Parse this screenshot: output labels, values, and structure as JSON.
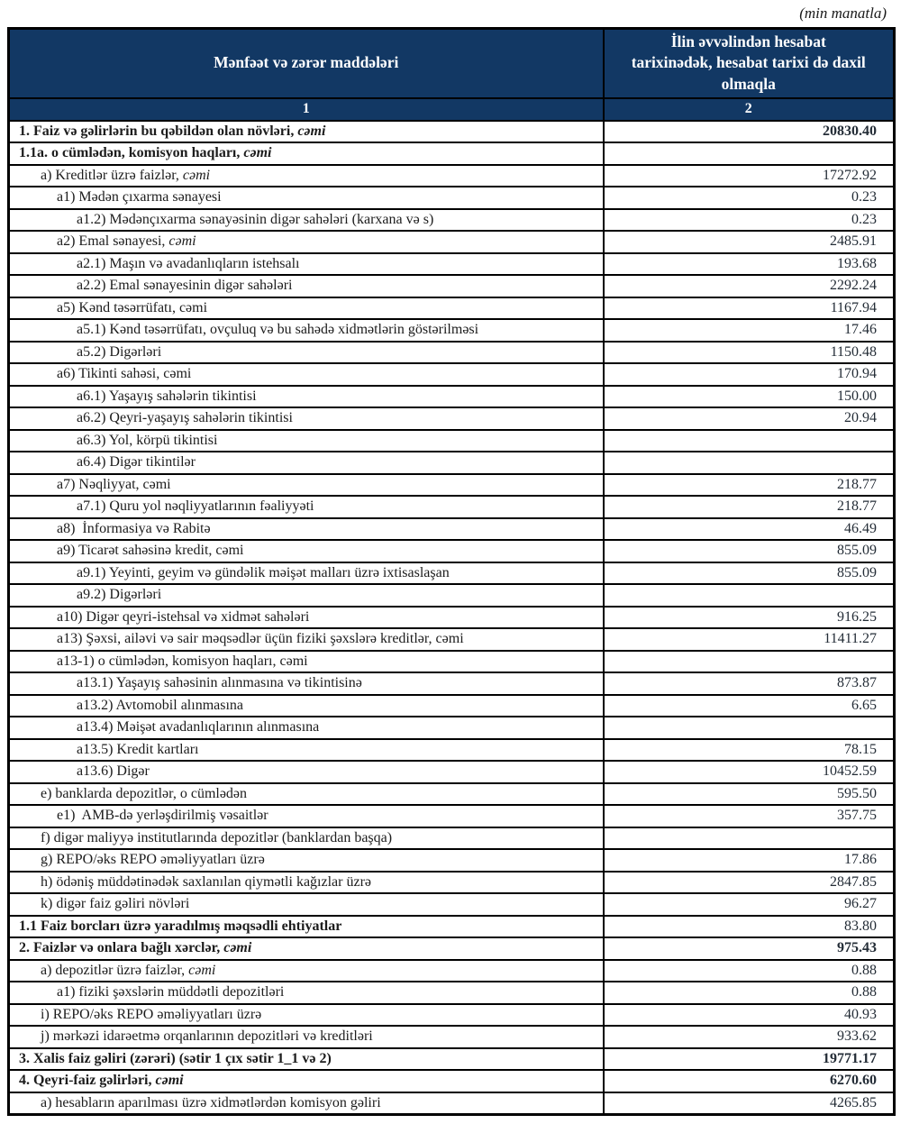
{
  "unit_note": "(min manatla)",
  "colors": {
    "header_bg": "#123864",
    "header_text": "#ffffff",
    "border": "#000000",
    "body_text": "#1c1c1c"
  },
  "table": {
    "col1_header": "Mənfəət və zərər maddələri",
    "col2_header": "İlin əvvəlindən hesabat tarixinədək, hesabat tarixi də daxil olmaqla",
    "col1_number": "1",
    "col2_number": "2",
    "rows": [
      {
        "label": "1. Faiz və gəlirlərin bu qəbildən olan növləri, ",
        "em": "cəmi",
        "value": "20830.40",
        "level": 0,
        "bold": true,
        "value_bold": true
      },
      {
        "label": "1.1a. o cümlədən, komisyon haqları, ",
        "em": "cəmi",
        "value": "",
        "level": 0,
        "bold": true,
        "value_bold": false
      },
      {
        "label": "a) Kreditlər üzrə faizlər, ",
        "em": "cəmi",
        "value": "17272.92",
        "level": 1,
        "bold": false,
        "value_bold": false
      },
      {
        "label": "a1) Mədən çıxarma sənayesi",
        "em": "",
        "value": "0.23",
        "level": 2,
        "bold": false,
        "value_bold": false
      },
      {
        "label": "a1.2) Mədənçıxarma sənayəsinin digər sahələri (karxana və s)",
        "em": "",
        "value": "0.23",
        "level": 3,
        "bold": false,
        "value_bold": false
      },
      {
        "label": "a2) Emal sənayesi, ",
        "em": "cəmi",
        "value": "2485.91",
        "level": 2,
        "bold": false,
        "value_bold": false
      },
      {
        "label": "a2.1) Maşın və avadanlıqların istehsalı",
        "em": "",
        "value": "193.68",
        "level": 3,
        "bold": false,
        "value_bold": false
      },
      {
        "label": "a2.2) Emal sənayesinin digər sahələri",
        "em": "",
        "value": "2292.24",
        "level": 3,
        "bold": false,
        "value_bold": false
      },
      {
        "label": "a5) Kənd təsərrüfatı, cəmi",
        "em": "",
        "value": "1167.94",
        "level": 2,
        "bold": false,
        "value_bold": false
      },
      {
        "label": "a5.1) Kənd təsərrüfatı, ovçuluq və bu sahədə xidmətlərin göstərilməsi",
        "em": "",
        "value": "17.46",
        "level": 3,
        "bold": false,
        "value_bold": false
      },
      {
        "label": "a5.2) Digərləri",
        "em": "",
        "value": "1150.48",
        "level": 3,
        "bold": false,
        "value_bold": false
      },
      {
        "label": "a6) Tikinti sahəsi, cəmi",
        "em": "",
        "value": "170.94",
        "level": 2,
        "bold": false,
        "value_bold": false
      },
      {
        "label": "a6.1) Yaşayış sahələrin tikintisi",
        "em": "",
        "value": "150.00",
        "level": 3,
        "bold": false,
        "value_bold": false
      },
      {
        "label": "a6.2) Qeyri-yaşayış sahələrin tikintisi",
        "em": "",
        "value": "20.94",
        "level": 3,
        "bold": false,
        "value_bold": false
      },
      {
        "label": "a6.3) Yol, körpü tikintisi",
        "em": "",
        "value": "",
        "level": 3,
        "bold": false,
        "value_bold": false
      },
      {
        "label": "a6.4) Digər tikintilər",
        "em": "",
        "value": "",
        "level": 3,
        "bold": false,
        "value_bold": false
      },
      {
        "label": "a7) Nəqliyyat, cəmi",
        "em": "",
        "value": "218.77",
        "level": 2,
        "bold": false,
        "value_bold": false
      },
      {
        "label": "a7.1) Quru yol nəqliyyatlarının fəaliyyəti",
        "em": "",
        "value": "218.77",
        "level": 3,
        "bold": false,
        "value_bold": false
      },
      {
        "label": "a8)  İnformasiya və Rabitə",
        "em": "",
        "value": "46.49",
        "level": 2,
        "bold": false,
        "value_bold": false
      },
      {
        "label": "a9) Ticarət sahəsinə kredit, cəmi",
        "em": "",
        "value": "855.09",
        "level": 2,
        "bold": false,
        "value_bold": false
      },
      {
        "label": "a9.1) Yeyinti, geyim və gündəlik məişət malları üzrə ixtisaslaşan",
        "em": "",
        "value": "855.09",
        "level": 3,
        "bold": false,
        "value_bold": false
      },
      {
        "label": "a9.2) Digərləri",
        "em": "",
        "value": "",
        "level": 3,
        "bold": false,
        "value_bold": false
      },
      {
        "label": "a10) Digər qeyri-istehsal və xidmət sahələri",
        "em": "",
        "value": "916.25",
        "level": 2,
        "bold": false,
        "value_bold": false
      },
      {
        "label": "a13) Şəxsi, ailəvi və sair məqsədlər üçün fiziki şəxslərə kreditlər, cəmi",
        "em": "",
        "value": "11411.27",
        "level": 2,
        "bold": false,
        "value_bold": false
      },
      {
        "label": "a13-1) o cümlədən, komisyon haqları, cəmi",
        "em": "",
        "value": "",
        "level": 2,
        "bold": false,
        "value_bold": false
      },
      {
        "label": "a13.1) Yaşayış sahəsinin alınmasına və tikintisinə",
        "em": "",
        "value": "873.87",
        "level": 3,
        "bold": false,
        "value_bold": false
      },
      {
        "label": "a13.2) Avtomobil alınmasına",
        "em": "",
        "value": "6.65",
        "level": 3,
        "bold": false,
        "value_bold": false
      },
      {
        "label": "a13.4) Məişət avadanlıqlarının alınmasına",
        "em": "",
        "value": "",
        "level": 3,
        "bold": false,
        "value_bold": false
      },
      {
        "label": "a13.5) Kredit kartları",
        "em": "",
        "value": "78.15",
        "level": 3,
        "bold": false,
        "value_bold": false
      },
      {
        "label": "a13.6) Digər",
        "em": "",
        "value": "10452.59",
        "level": 3,
        "bold": false,
        "value_bold": false
      },
      {
        "label": "e) banklarda depozitlər, o cümlədən",
        "em": "",
        "value": "595.50",
        "level": 1,
        "bold": false,
        "value_bold": false
      },
      {
        "label": "e1)  AMB-də yerləşdirilmiş vəsaitlər",
        "em": "",
        "value": "357.75",
        "level": 2,
        "bold": false,
        "value_bold": false
      },
      {
        "label": "f) digər maliyyə institutlarında depozitlər (banklardan başqa)",
        "em": "",
        "value": "",
        "level": 1,
        "bold": false,
        "value_bold": false
      },
      {
        "label": "g) REPO/əks REPO əməliyyatları üzrə",
        "em": "",
        "value": "17.86",
        "level": 1,
        "bold": false,
        "value_bold": false
      },
      {
        "label": "h) ödəniş müddətinədək saxlanılan qiymətli kağızlar üzrə",
        "em": "",
        "value": "2847.85",
        "level": 1,
        "bold": false,
        "value_bold": false
      },
      {
        "label": "k) digər faiz gəliri növləri",
        "em": "",
        "value": "96.27",
        "level": 1,
        "bold": false,
        "value_bold": false
      },
      {
        "label": "1.1 Faiz borcları üzrə yaradılmış məqsədli ehtiyatlar",
        "em": "",
        "value": "83.80",
        "level": 0,
        "bold": true,
        "value_bold": false
      },
      {
        "label": "2. Faizlər və onlara bağlı xərclər, ",
        "em": "cəmi",
        "value": "975.43",
        "level": 0,
        "bold": true,
        "value_bold": true
      },
      {
        "label": "a) depozitlər üzrə faizlər, ",
        "em": "cəmi",
        "value": "0.88",
        "level": 1,
        "bold": false,
        "value_bold": false
      },
      {
        "label": "a1) fiziki şəxslərin müddətli depozitləri",
        "em": "",
        "value": "0.88",
        "level": 2,
        "bold": false,
        "value_bold": false
      },
      {
        "label": "i) REPO/əks REPO əməliyyatları üzrə",
        "em": "",
        "value": "40.93",
        "level": 1,
        "bold": false,
        "value_bold": false
      },
      {
        "label": "j) mərkəzi idarəetmə orqanlarının depozitləri və kreditləri",
        "em": "",
        "value": "933.62",
        "level": 1,
        "bold": false,
        "value_bold": false
      },
      {
        "label": "3. Xalis faiz gəliri (zərəri) (sətir 1 çıx sətir 1_1 və 2)",
        "em": "",
        "value": "19771.17",
        "level": 0,
        "bold": true,
        "value_bold": true
      },
      {
        "label": "4. Qeyri-faiz gəlirləri, ",
        "em": "cəmi",
        "value": "6270.60",
        "level": 0,
        "bold": true,
        "value_bold": true
      },
      {
        "label": "a) hesabların aparılması üzrə xidmətlərdən komisyon gəliri",
        "em": "",
        "value": "4265.85",
        "level": 1,
        "bold": false,
        "value_bold": false
      }
    ]
  }
}
